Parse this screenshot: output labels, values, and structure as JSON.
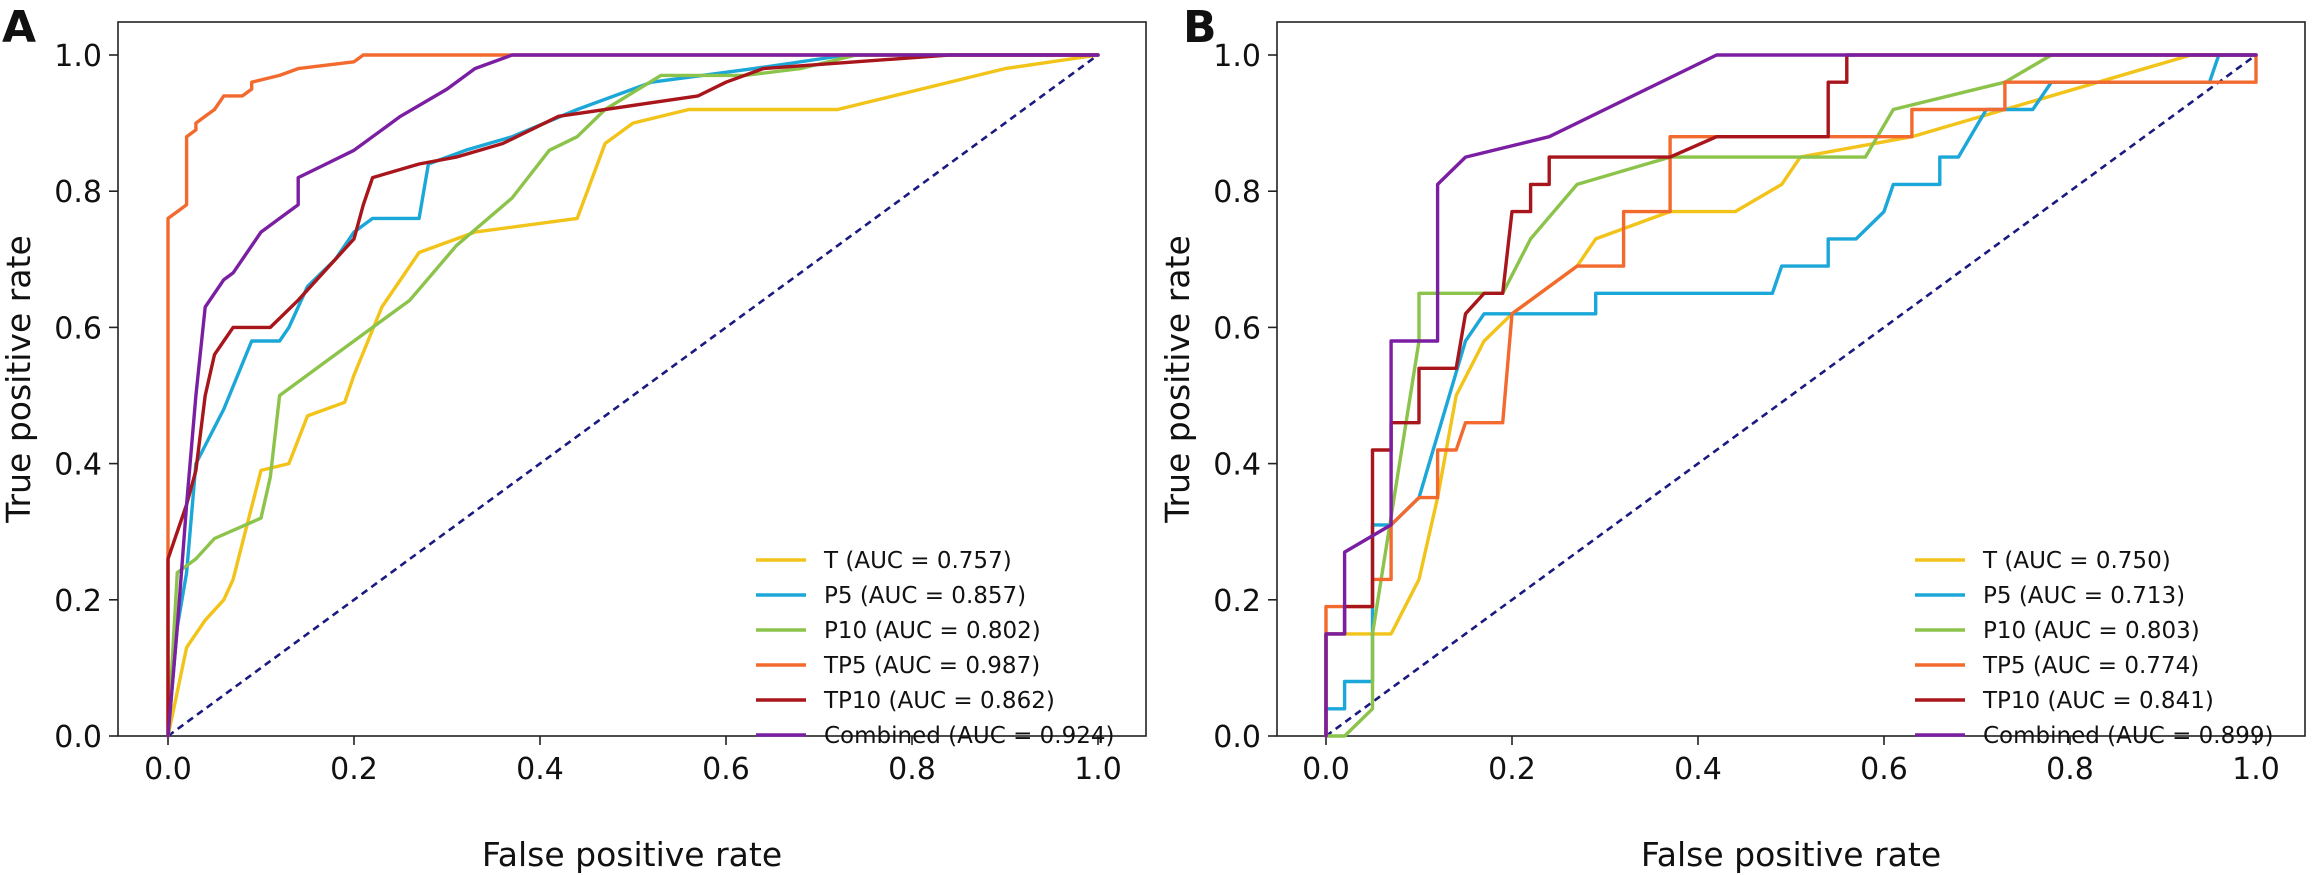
{
  "colors": {
    "T": "#f2c318",
    "P5": "#1ba7d8",
    "P10": "#8cc34a",
    "TP5": "#f26a2e",
    "TP10": "#a8161c",
    "Combined": "#7b1fa2",
    "diagonal": "#1a1a80"
  },
  "chart_data": [
    {
      "panel": "A",
      "type": "line",
      "xlabel": "False positive rate",
      "ylabel": "True positive rate",
      "xlim": [
        0,
        1.0
      ],
      "ylim": [
        0,
        1.0
      ],
      "xticks": [
        "0.0",
        "0.2",
        "0.4",
        "0.6",
        "0.8",
        "1.0"
      ],
      "yticks": [
        "0.0",
        "0.2",
        "0.4",
        "0.6",
        "0.8",
        "1.0"
      ],
      "grid": false,
      "legend_position": "lower-right",
      "diagonal": [
        [
          0,
          0
        ],
        [
          1,
          1
        ]
      ],
      "series": [
        {
          "key": "T",
          "name": "T (AUC = 0.757)",
          "points": [
            [
              0,
              0
            ],
            [
              0.02,
              0.13
            ],
            [
              0.04,
              0.17
            ],
            [
              0.06,
              0.2
            ],
            [
              0.07,
              0.23
            ],
            [
              0.1,
              0.39
            ],
            [
              0.13,
              0.4
            ],
            [
              0.15,
              0.47
            ],
            [
              0.19,
              0.49
            ],
            [
              0.2,
              0.53
            ],
            [
              0.23,
              0.63
            ],
            [
              0.27,
              0.71
            ],
            [
              0.33,
              0.74
            ],
            [
              0.44,
              0.76
            ],
            [
              0.47,
              0.87
            ],
            [
              0.5,
              0.9
            ],
            [
              0.56,
              0.92
            ],
            [
              0.72,
              0.92
            ],
            [
              0.9,
              0.98
            ],
            [
              1,
              1
            ]
          ]
        },
        {
          "key": "P5",
          "name": "P5 (AUC = 0.857)",
          "points": [
            [
              0,
              0
            ],
            [
              0.01,
              0.16
            ],
            [
              0.02,
              0.24
            ],
            [
              0.03,
              0.4
            ],
            [
              0.06,
              0.48
            ],
            [
              0.09,
              0.58
            ],
            [
              0.12,
              0.58
            ],
            [
              0.13,
              0.6
            ],
            [
              0.15,
              0.66
            ],
            [
              0.18,
              0.7
            ],
            [
              0.2,
              0.74
            ],
            [
              0.22,
              0.76
            ],
            [
              0.27,
              0.76
            ],
            [
              0.28,
              0.84
            ],
            [
              0.32,
              0.86
            ],
            [
              0.37,
              0.88
            ],
            [
              0.44,
              0.92
            ],
            [
              0.52,
              0.96
            ],
            [
              0.63,
              0.98
            ],
            [
              0.73,
              1
            ],
            [
              1,
              1
            ]
          ]
        },
        {
          "key": "P10",
          "name": "P10 (AUC = 0.802)",
          "points": [
            [
              0,
              0
            ],
            [
              0.01,
              0.24
            ],
            [
              0.03,
              0.26
            ],
            [
              0.05,
              0.29
            ],
            [
              0.1,
              0.32
            ],
            [
              0.11,
              0.38
            ],
            [
              0.12,
              0.5
            ],
            [
              0.17,
              0.55
            ],
            [
              0.26,
              0.64
            ],
            [
              0.31,
              0.72
            ],
            [
              0.37,
              0.79
            ],
            [
              0.41,
              0.86
            ],
            [
              0.44,
              0.88
            ],
            [
              0.47,
              0.92
            ],
            [
              0.53,
              0.97
            ],
            [
              0.62,
              0.97
            ],
            [
              0.68,
              0.98
            ],
            [
              0.74,
              1
            ],
            [
              1,
              1
            ]
          ]
        },
        {
          "key": "TP5",
          "name": "TP5 (AUC = 0.987)",
          "points": [
            [
              0,
              0
            ],
            [
              0,
              0.76
            ],
            [
              0.01,
              0.77
            ],
            [
              0.02,
              0.78
            ],
            [
              0.02,
              0.88
            ],
            [
              0.03,
              0.89
            ],
            [
              0.03,
              0.9
            ],
            [
              0.04,
              0.91
            ],
            [
              0.05,
              0.92
            ],
            [
              0.06,
              0.94
            ],
            [
              0.08,
              0.94
            ],
            [
              0.09,
              0.95
            ],
            [
              0.09,
              0.96
            ],
            [
              0.12,
              0.97
            ],
            [
              0.14,
              0.98
            ],
            [
              0.2,
              0.99
            ],
            [
              0.21,
              1
            ],
            [
              1,
              1
            ]
          ]
        },
        {
          "key": "TP10",
          "name": "TP10 (AUC = 0.862)",
          "points": [
            [
              0,
              0
            ],
            [
              0,
              0.26
            ],
            [
              0.02,
              0.34
            ],
            [
              0.03,
              0.39
            ],
            [
              0.04,
              0.5
            ],
            [
              0.05,
              0.56
            ],
            [
              0.06,
              0.58
            ],
            [
              0.07,
              0.6
            ],
            [
              0.11,
              0.6
            ],
            [
              0.14,
              0.64
            ],
            [
              0.16,
              0.67
            ],
            [
              0.18,
              0.7
            ],
            [
              0.2,
              0.73
            ],
            [
              0.21,
              0.78
            ],
            [
              0.22,
              0.82
            ],
            [
              0.27,
              0.84
            ],
            [
              0.31,
              0.85
            ],
            [
              0.36,
              0.87
            ],
            [
              0.42,
              0.91
            ],
            [
              0.52,
              0.93
            ],
            [
              0.57,
              0.94
            ],
            [
              0.6,
              0.96
            ],
            [
              0.64,
              0.98
            ],
            [
              0.84,
              1
            ],
            [
              1,
              1
            ]
          ]
        },
        {
          "key": "Combined",
          "name": "Combined (AUC = 0.924)",
          "points": [
            [
              0,
              0
            ],
            [
              0.01,
              0.16
            ],
            [
              0.02,
              0.34
            ],
            [
              0.03,
              0.5
            ],
            [
              0.04,
              0.63
            ],
            [
              0.06,
              0.67
            ],
            [
              0.07,
              0.68
            ],
            [
              0.08,
              0.7
            ],
            [
              0.1,
              0.74
            ],
            [
              0.12,
              0.76
            ],
            [
              0.14,
              0.78
            ],
            [
              0.14,
              0.82
            ],
            [
              0.17,
              0.84
            ],
            [
              0.2,
              0.86
            ],
            [
              0.25,
              0.91
            ],
            [
              0.3,
              0.95
            ],
            [
              0.33,
              0.98
            ],
            [
              0.37,
              1
            ],
            [
              1,
              1
            ]
          ]
        }
      ]
    },
    {
      "panel": "B",
      "type": "line",
      "xlabel": "False positive rate",
      "ylabel": "True positive rate",
      "xlim": [
        0,
        1.0
      ],
      "ylim": [
        0,
        1.0
      ],
      "xticks": [
        "0.0",
        "0.2",
        "0.4",
        "0.6",
        "0.8",
        "1.0"
      ],
      "yticks": [
        "0.0",
        "0.2",
        "0.4",
        "0.6",
        "0.8",
        "1.0"
      ],
      "grid": false,
      "legend_position": "lower-right",
      "diagonal": [
        [
          0,
          0
        ],
        [
          1,
          1
        ]
      ],
      "series": [
        {
          "key": "T",
          "name": "T (AUC = 0.750)",
          "points": [
            [
              0,
              0
            ],
            [
              0,
              0.15
            ],
            [
              0.07,
              0.15
            ],
            [
              0.1,
              0.23
            ],
            [
              0.12,
              0.35
            ],
            [
              0.14,
              0.5
            ],
            [
              0.17,
              0.58
            ],
            [
              0.2,
              0.62
            ],
            [
              0.27,
              0.69
            ],
            [
              0.29,
              0.73
            ],
            [
              0.37,
              0.77
            ],
            [
              0.44,
              0.77
            ],
            [
              0.49,
              0.81
            ],
            [
              0.51,
              0.85
            ],
            [
              0.63,
              0.88
            ],
            [
              0.73,
              0.92
            ],
            [
              0.93,
              1
            ],
            [
              1,
              1
            ]
          ]
        },
        {
          "key": "P5",
          "name": "P5 (AUC = 0.713)",
          "points": [
            [
              0,
              0
            ],
            [
              0,
              0.04
            ],
            [
              0.02,
              0.04
            ],
            [
              0.02,
              0.08
            ],
            [
              0.05,
              0.08
            ],
            [
              0.05,
              0.31
            ],
            [
              0.07,
              0.31
            ],
            [
              0.1,
              0.35
            ],
            [
              0.15,
              0.58
            ],
            [
              0.17,
              0.62
            ],
            [
              0.29,
              0.62
            ],
            [
              0.29,
              0.65
            ],
            [
              0.48,
              0.65
            ],
            [
              0.49,
              0.69
            ],
            [
              0.54,
              0.69
            ],
            [
              0.54,
              0.73
            ],
            [
              0.57,
              0.73
            ],
            [
              0.6,
              0.77
            ],
            [
              0.61,
              0.81
            ],
            [
              0.66,
              0.81
            ],
            [
              0.66,
              0.85
            ],
            [
              0.68,
              0.85
            ],
            [
              0.71,
              0.92
            ],
            [
              0.76,
              0.92
            ],
            [
              0.78,
              0.96
            ],
            [
              0.95,
              0.96
            ],
            [
              0.96,
              1
            ],
            [
              1,
              1
            ]
          ]
        },
        {
          "key": "P10",
          "name": "P10 (AUC = 0.803)",
          "points": [
            [
              0,
              0
            ],
            [
              0.02,
              0
            ],
            [
              0.05,
              0.04
            ],
            [
              0.05,
              0.15
            ],
            [
              0.1,
              0.58
            ],
            [
              0.1,
              0.65
            ],
            [
              0.17,
              0.65
            ],
            [
              0.19,
              0.65
            ],
            [
              0.22,
              0.73
            ],
            [
              0.27,
              0.81
            ],
            [
              0.37,
              0.85
            ],
            [
              0.58,
              0.85
            ],
            [
              0.61,
              0.92
            ],
            [
              0.73,
              0.96
            ],
            [
              0.78,
              1
            ],
            [
              1,
              1
            ]
          ]
        },
        {
          "key": "TP5",
          "name": "TP5 (AUC = 0.774)",
          "points": [
            [
              0,
              0
            ],
            [
              0,
              0.19
            ],
            [
              0.05,
              0.19
            ],
            [
              0.05,
              0.23
            ],
            [
              0.07,
              0.23
            ],
            [
              0.07,
              0.31
            ],
            [
              0.1,
              0.35
            ],
            [
              0.12,
              0.35
            ],
            [
              0.12,
              0.42
            ],
            [
              0.14,
              0.42
            ],
            [
              0.15,
              0.46
            ],
            [
              0.19,
              0.46
            ],
            [
              0.2,
              0.62
            ],
            [
              0.27,
              0.69
            ],
            [
              0.32,
              0.69
            ],
            [
              0.32,
              0.77
            ],
            [
              0.37,
              0.77
            ],
            [
              0.37,
              0.88
            ],
            [
              0.63,
              0.88
            ],
            [
              0.63,
              0.92
            ],
            [
              0.73,
              0.92
            ],
            [
              0.73,
              0.96
            ],
            [
              1,
              0.96
            ],
            [
              1,
              1
            ]
          ]
        },
        {
          "key": "TP10",
          "name": "TP10 (AUC = 0.841)",
          "points": [
            [
              0,
              0
            ],
            [
              0,
              0.15
            ],
            [
              0.02,
              0.15
            ],
            [
              0.02,
              0.19
            ],
            [
              0.05,
              0.19
            ],
            [
              0.05,
              0.42
            ],
            [
              0.07,
              0.42
            ],
            [
              0.07,
              0.46
            ],
            [
              0.1,
              0.46
            ],
            [
              0.1,
              0.54
            ],
            [
              0.14,
              0.54
            ],
            [
              0.15,
              0.62
            ],
            [
              0.17,
              0.65
            ],
            [
              0.19,
              0.65
            ],
            [
              0.2,
              0.77
            ],
            [
              0.22,
              0.77
            ],
            [
              0.22,
              0.81
            ],
            [
              0.24,
              0.81
            ],
            [
              0.24,
              0.85
            ],
            [
              0.37,
              0.85
            ],
            [
              0.42,
              0.88
            ],
            [
              0.54,
              0.88
            ],
            [
              0.54,
              0.96
            ],
            [
              0.56,
              0.96
            ],
            [
              0.56,
              1
            ],
            [
              1,
              1
            ]
          ]
        },
        {
          "key": "Combined",
          "name": "Combined (AUC = 0.899)",
          "points": [
            [
              0,
              0
            ],
            [
              0,
              0.15
            ],
            [
              0.02,
              0.15
            ],
            [
              0.02,
              0.27
            ],
            [
              0.07,
              0.31
            ],
            [
              0.07,
              0.58
            ],
            [
              0.12,
              0.58
            ],
            [
              0.12,
              0.81
            ],
            [
              0.15,
              0.85
            ],
            [
              0.24,
              0.88
            ],
            [
              0.42,
              1
            ],
            [
              1,
              1
            ]
          ]
        }
      ]
    }
  ]
}
